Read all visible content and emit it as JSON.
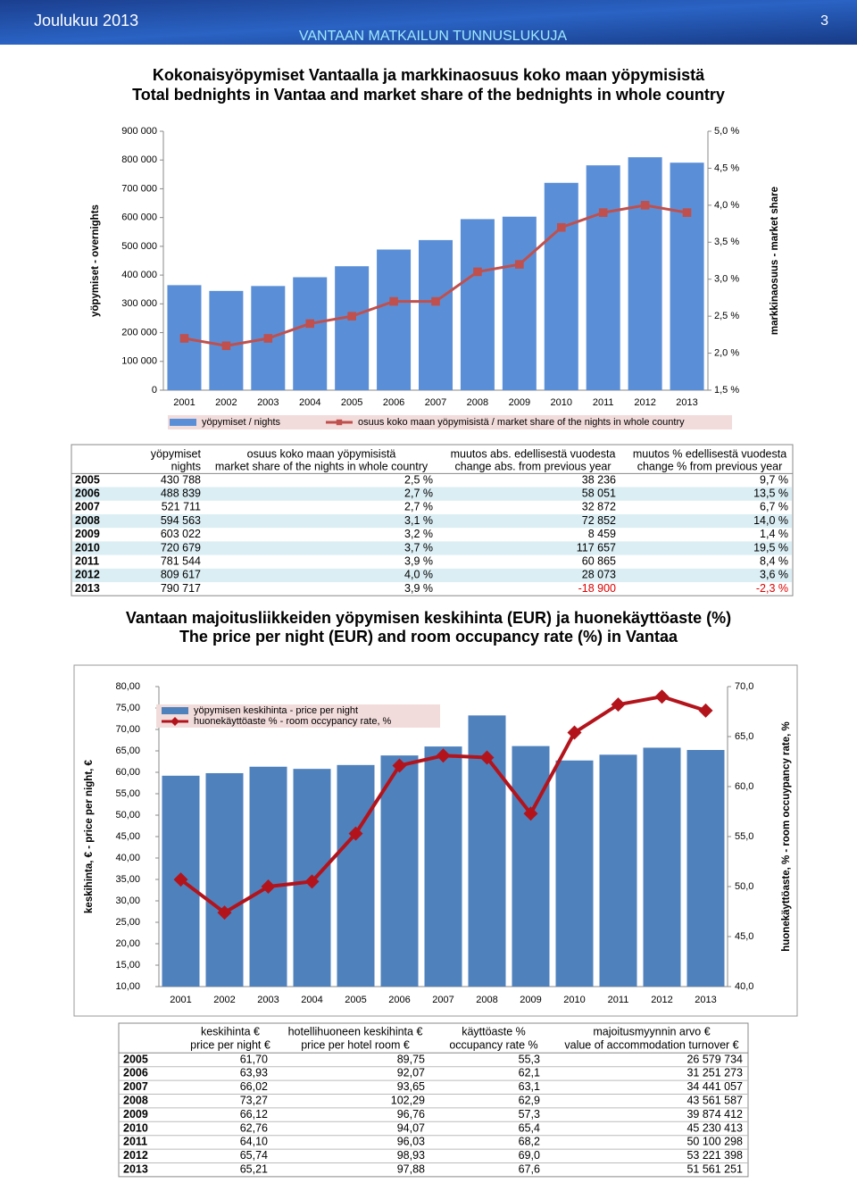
{
  "header": {
    "date": "Joulukuu 2013",
    "page": "3",
    "subtitle": "VANTAAN MATKAILUN TUNNUSLUKUJA"
  },
  "chart_data": [
    {
      "type": "bar",
      "title": "Kokonaisyöpymiset Vantaalla ja markkinaosuus koko maan yöpymisistä",
      "subtitle": "Total bednights in Vantaa and market share of the bednights in whole country",
      "ylabel": "yöpymiset - overnights",
      "y2label": "markkinaosuus - market share",
      "categories": [
        "2001",
        "2002",
        "2003",
        "2004",
        "2005",
        "2006",
        "2007",
        "2008",
        "2009",
        "2010",
        "2011",
        "2012",
        "2013"
      ],
      "series": [
        {
          "name": "yöpymiset / nights",
          "type": "bar",
          "color": "#5a8fd8",
          "values": [
            365000,
            345000,
            362000,
            392552,
            430788,
            488839,
            521711,
            594563,
            603022,
            720679,
            781544,
            809617,
            790717
          ]
        },
        {
          "name": "osuus koko maan yöpymisistä / market share of the nights in whole country",
          "type": "line",
          "axis": "y2",
          "color": "#c0504d",
          "marker": "square",
          "values": [
            2.2,
            2.1,
            2.2,
            2.4,
            2.5,
            2.7,
            2.7,
            3.1,
            3.2,
            3.7,
            3.9,
            4.0,
            3.9
          ]
        }
      ],
      "ylim": [
        0,
        900000
      ],
      "yticks": [
        0,
        {
          "value": 100000,
          "label": "100 000"
        },
        {
          "value": 200000,
          "label": "200 000"
        },
        {
          "value": 300000,
          "label": "300 000"
        },
        {
          "value": 400000,
          "label": "400 000"
        },
        {
          "value": 500000,
          "label": "500 000"
        },
        {
          "value": 600000,
          "label": "600 000"
        },
        {
          "value": 700000,
          "label": "700 000"
        },
        {
          "value": 800000,
          "label": "800 000"
        },
        {
          "value": 900000,
          "label": "900 000"
        }
      ],
      "y2lim": [
        1.5,
        5.0
      ],
      "y2ticks": [
        {
          "value": 1.5,
          "label": "1,5 %"
        },
        {
          "value": 2.0,
          "label": "2,0 %"
        },
        {
          "value": 2.5,
          "label": "2,5 %"
        },
        {
          "value": 3.0,
          "label": "3,0 %"
        },
        {
          "value": 3.5,
          "label": "3,5 %"
        },
        {
          "value": 4.0,
          "label": "4,0 %"
        },
        {
          "value": 4.5,
          "label": "4,5 %"
        },
        {
          "value": 5.0,
          "label": "5,0 %"
        }
      ],
      "legend": "bottom",
      "grid": false
    },
    {
      "type": "bar",
      "title": "Vantaan majoitusliikkeiden yöpymisen keskihinta (EUR) ja huonekäyttöaste (%)",
      "subtitle": "The price per night (EUR) and room occupancy rate (%) in Vantaa",
      "ylabel": "keskihinta, € - price per night, €",
      "y2label": "huonekäyttöaste, % - room occuypancy rate, %",
      "categories": [
        "2001",
        "2002",
        "2003",
        "2004",
        "2005",
        "2006",
        "2007",
        "2008",
        "2009",
        "2010",
        "2011",
        "2012",
        "2013"
      ],
      "series": [
        {
          "name": "yöpymisen keskihinta -  price per night",
          "type": "bar",
          "color": "#4f81bd",
          "values": [
            59.2,
            59.8,
            61.3,
            60.8,
            61.7,
            63.93,
            66.02,
            73.27,
            66.12,
            62.76,
            64.1,
            65.74,
            65.21
          ]
        },
        {
          "name": "huonekäyttöaste % - room occypancy rate, %",
          "type": "line",
          "axis": "y2",
          "color": "#b3141b",
          "marker": "diamond",
          "values": [
            50.7,
            47.4,
            50.0,
            50.5,
            55.3,
            62.1,
            63.1,
            62.9,
            57.3,
            65.4,
            68.2,
            69.0,
            67.6
          ]
        }
      ],
      "ylim": [
        10,
        80
      ],
      "yticks": [
        {
          "value": 10,
          "label": "10,00"
        },
        {
          "value": 15,
          "label": "15,00"
        },
        {
          "value": 20,
          "label": "20,00"
        },
        {
          "value": 25,
          "label": "25,00"
        },
        {
          "value": 30,
          "label": "30,00"
        },
        {
          "value": 35,
          "label": "35,00"
        },
        {
          "value": 40,
          "label": "40,00"
        },
        {
          "value": 45,
          "label": "45,00"
        },
        {
          "value": 50,
          "label": "50,00"
        },
        {
          "value": 55,
          "label": "55,00"
        },
        {
          "value": 60,
          "label": "60,00"
        },
        {
          "value": 65,
          "label": "65,00"
        },
        {
          "value": 70,
          "label": "70,00"
        },
        {
          "value": 75,
          "label": "75,00"
        },
        {
          "value": 80,
          "label": "80,00"
        }
      ],
      "y2lim": [
        40,
        70
      ],
      "y2ticks": [
        {
          "value": 40,
          "label": "40,0"
        },
        {
          "value": 45,
          "label": "45,0"
        },
        {
          "value": 50,
          "label": "50,0"
        },
        {
          "value": 55,
          "label": "55,0"
        },
        {
          "value": 60,
          "label": "60,0"
        },
        {
          "value": 65,
          "label": "65,0"
        },
        {
          "value": 70,
          "label": "70,0"
        }
      ],
      "legend": "upper left",
      "grid": false
    }
  ],
  "tables": [
    {
      "header": [
        [
          "yöpymiset",
          "nights"
        ],
        [
          "osuus koko maan yöpymisistä",
          "market share of the nights in whole country"
        ],
        [
          "muutos abs. edellisestä vuodesta",
          "change abs. from previous year"
        ],
        [
          "muutos % edellisestä vuodesta",
          "change % from previous year"
        ]
      ],
      "rows": [
        [
          "2005",
          "430 788",
          "2,5 %",
          "38 236",
          "9,7 %"
        ],
        [
          "2006",
          "488 839",
          "2,7 %",
          "58 051",
          "13,5 %"
        ],
        [
          "2007",
          "521 711",
          "2,7 %",
          "32 872",
          "6,7 %"
        ],
        [
          "2008",
          "594 563",
          "3,1 %",
          "72 852",
          "14,0 %"
        ],
        [
          "2009",
          "603 022",
          "3,2 %",
          "8 459",
          "1,4 %"
        ],
        [
          "2010",
          "720 679",
          "3,7 %",
          "117 657",
          "19,5 %"
        ],
        [
          "2011",
          "781 544",
          "3,9 %",
          "60 865",
          "8,4 %"
        ],
        [
          "2012",
          "809 617",
          "4,0 %",
          "28 073",
          "3,6 %"
        ],
        [
          "2013",
          "790 717",
          "3,9 %",
          "-18 900",
          "-2,3 %"
        ]
      ]
    },
    {
      "header": [
        [
          "keskihinta €",
          "price per night €"
        ],
        [
          "hotellihuoneen keskihinta €",
          "price per hotel room €"
        ],
        [
          "käyttöaste %",
          "occupancy rate %"
        ],
        [
          "majoitusmyynnin arvo €",
          "value of accommodation turnover €"
        ]
      ],
      "rows": [
        [
          "2005",
          "61,70",
          "89,75",
          "55,3",
          "26 579 734"
        ],
        [
          "2006",
          "63,93",
          "92,07",
          "62,1",
          "31 251 273"
        ],
        [
          "2007",
          "66,02",
          "93,65",
          "63,1",
          "34 441 057"
        ],
        [
          "2008",
          "73,27",
          "102,29",
          "62,9",
          "43 561 587"
        ],
        [
          "2009",
          "66,12",
          "96,76",
          "57,3",
          "39 874 412"
        ],
        [
          "2010",
          "62,76",
          "94,07",
          "65,4",
          "45 230 413"
        ],
        [
          "2011",
          "64,10",
          "96,03",
          "68,2",
          "50 100 298"
        ],
        [
          "2012",
          "65,74",
          "98,93",
          "69,0",
          "53 221 398"
        ],
        [
          "2013",
          "65,21",
          "97,88",
          "67,6",
          "51 561 251"
        ]
      ]
    }
  ]
}
